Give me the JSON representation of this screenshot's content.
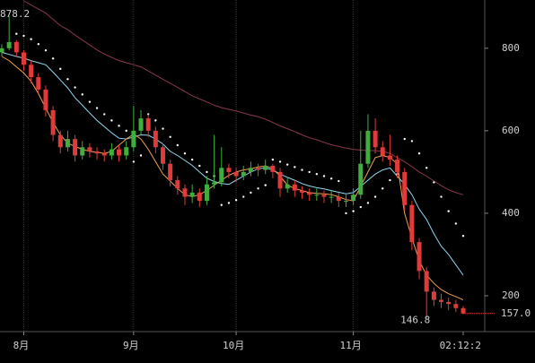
{
  "chart_data": {
    "type": "candlestick",
    "grid": true,
    "ylim": [
      113,
      917
    ],
    "yticks": [
      200,
      400,
      600,
      800
    ],
    "up_color": "#3fae3f",
    "down_color": "#e03a3a",
    "categories": [
      null,
      null,
      null,
      "8月",
      null,
      null,
      null,
      null,
      null,
      null,
      null,
      null,
      null,
      null,
      null,
      null,
      null,
      null,
      "9月",
      null,
      null,
      null,
      null,
      null,
      null,
      null,
      null,
      null,
      null,
      null,
      null,
      null,
      "10月",
      null,
      null,
      null,
      null,
      null,
      null,
      null,
      null,
      null,
      null,
      null,
      null,
      null,
      null,
      null,
      "11月",
      null,
      null,
      null,
      null,
      null,
      null,
      null,
      null,
      null,
      null,
      null,
      null,
      null,
      null,
      "02:12:2"
    ],
    "candles": {
      "values": [
        [
          790,
          810,
          780,
          800
        ],
        [
          800,
          878.2,
          795,
          815
        ],
        [
          815,
          820,
          780,
          790
        ],
        [
          790,
          795,
          745,
          760
        ],
        [
          760,
          770,
          715,
          730
        ],
        [
          730,
          740,
          690,
          700
        ],
        [
          700,
          710,
          635,
          650
        ],
        [
          650,
          660,
          575,
          590
        ],
        [
          590,
          600,
          545,
          560
        ],
        [
          560,
          600,
          550,
          580
        ],
        [
          580,
          590,
          525,
          540
        ],
        [
          540,
          575,
          530,
          560
        ],
        [
          560,
          570,
          535,
          550
        ],
        [
          550,
          560,
          530,
          545
        ],
        [
          545,
          555,
          525,
          540
        ],
        [
          540,
          570,
          530,
          555
        ],
        [
          555,
          565,
          525,
          540
        ],
        [
          540,
          575,
          530,
          560
        ],
        [
          560,
          660,
          550,
          600
        ],
        [
          600,
          650,
          590,
          630
        ],
        [
          630,
          640,
          585,
          600
        ],
        [
          600,
          610,
          545,
          560
        ],
        [
          560,
          570,
          505,
          520
        ],
        [
          520,
          530,
          465,
          480
        ],
        [
          480,
          490,
          445,
          460
        ],
        [
          460,
          470,
          420,
          440
        ],
        [
          440,
          470,
          425,
          450
        ],
        [
          450,
          460,
          415,
          430
        ],
        [
          430,
          490,
          420,
          470
        ],
        [
          470,
          590,
          460,
          475
        ],
        [
          475,
          560,
          465,
          510
        ],
        [
          510,
          520,
          485,
          500
        ],
        [
          500,
          510,
          475,
          490
        ],
        [
          490,
          515,
          480,
          500
        ],
        [
          500,
          525,
          490,
          510
        ],
        [
          510,
          520,
          490,
          505
        ],
        [
          505,
          530,
          495,
          515
        ],
        [
          515,
          520,
          485,
          500
        ],
        [
          500,
          510,
          440,
          460
        ],
        [
          460,
          485,
          450,
          470
        ],
        [
          470,
          480,
          440,
          455
        ],
        [
          455,
          465,
          435,
          450
        ],
        [
          450,
          460,
          430,
          445
        ],
        [
          445,
          460,
          430,
          445
        ],
        [
          445,
          455,
          425,
          440
        ],
        [
          440,
          455,
          425,
          440
        ],
        [
          440,
          450,
          415,
          430
        ],
        [
          430,
          445,
          415,
          430
        ],
        [
          430,
          460,
          420,
          445
        ],
        [
          445,
          600,
          435,
          520
        ],
        [
          520,
          640,
          510,
          600
        ],
        [
          600,
          630,
          545,
          560
        ],
        [
          560,
          575,
          525,
          540
        ],
        [
          540,
          590,
          515,
          530
        ],
        [
          530,
          540,
          485,
          500
        ],
        [
          500,
          510,
          405,
          420
        ],
        [
          420,
          430,
          310,
          330
        ],
        [
          330,
          340,
          240,
          260
        ],
        [
          260,
          270,
          146.8,
          210
        ],
        [
          210,
          220,
          175,
          190
        ],
        [
          190,
          205,
          170,
          185
        ],
        [
          185,
          195,
          165,
          180
        ],
        [
          180,
          190,
          160,
          170
        ],
        [
          170,
          175,
          155,
          157
        ]
      ]
    },
    "high_label_ref": [
      1,
      1
    ],
    "low_label_ref": [
      58,
      2
    ],
    "last_price_label": "157.0",
    "overlays": [
      {
        "style": "line",
        "color": "#8a3848",
        "values": [
          null,
          null,
          null,
          915,
          905,
          895,
          885,
          870,
          855,
          845,
          832,
          820,
          808,
          796,
          786,
          778,
          770,
          765,
          760,
          755,
          745,
          735,
          725,
          715,
          705,
          695,
          685,
          677,
          670,
          662,
          656,
          652,
          648,
          643,
          638,
          634,
          628,
          620,
          612,
          605,
          598,
          590,
          583,
          578,
          572,
          566,
          562,
          558,
          555,
          553,
          552,
          552,
          550,
          545,
          535,
          525,
          513,
          500,
          490,
          478,
          467,
          457,
          450,
          445
        ]
      },
      {
        "style": "line",
        "color": "#8fd8f0",
        "values": [
          790,
          785,
          780,
          776,
          770,
          765,
          760,
          742,
          723,
          704,
          680,
          662,
          643,
          625,
          610,
          595,
          582,
          580,
          585,
          590,
          589,
          580,
          568,
          550,
          540,
          528,
          516,
          500,
          485,
          477,
          472,
          470,
          480,
          490,
          500,
          508,
          510,
          505,
          495,
          487,
          480,
          472,
          466,
          462,
          459,
          455,
          451,
          447,
          450,
          465,
          480,
          495,
          505,
          510,
          490,
          470,
          445,
          410,
          385,
          350,
          320,
          300,
          275,
          250
        ]
      },
      {
        "style": "line",
        "color": "#f0a050",
        "values": [
          780,
          770,
          755,
          740,
          720,
          690,
          655,
          620,
          590,
          570,
          562,
          555,
          550,
          548,
          545,
          550,
          565,
          580,
          592,
          580,
          555,
          525,
          495,
          478,
          460,
          445,
          440,
          445,
          455,
          468,
          480,
          492,
          500,
          505,
          508,
          512,
          515,
          508,
          490,
          468,
          460,
          455,
          450,
          448,
          447,
          445,
          440,
          433,
          430,
          465,
          500,
          535,
          540,
          535,
          520,
          400,
          340,
          285,
          250,
          230,
          215,
          205,
          198,
          190
        ]
      },
      {
        "style": "dots",
        "color": "#ffffff",
        "values": [
          null,
          null,
          835,
          830,
          822,
          810,
          795,
          775,
          750,
          725,
          705,
          688,
          670,
          655,
          640,
          625,
          612,
          600,
          525,
          540,
          640,
          625,
          605,
          585,
          565,
          545,
          530,
          515,
          500,
          490,
          420,
          425,
          432,
          440,
          450,
          460,
          468,
          530,
          525,
          518,
          512,
          505,
          500,
          495,
          490,
          484,
          478,
          400,
          405,
          415,
          425,
          440,
          460,
          480,
          495,
          580,
          575,
          545,
          510,
          475,
          440,
          405,
          375,
          345
        ]
      }
    ]
  }
}
